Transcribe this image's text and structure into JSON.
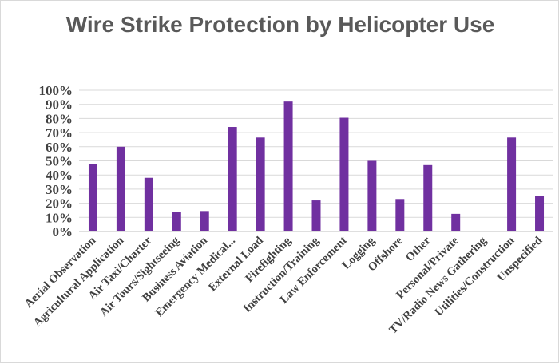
{
  "chart_data": {
    "type": "bar",
    "title": "Wire Strike Protection by Helicopter Use",
    "xlabel": "",
    "ylabel": "",
    "ylim": [
      0,
      1
    ],
    "yticks": [
      "0%",
      "10%",
      "20%",
      "30%",
      "40%",
      "50%",
      "60%",
      "70%",
      "80%",
      "90%",
      "100%"
    ],
    "grid": true,
    "legend": "none",
    "bar_color": "#7030a0",
    "categories": [
      "Aerial Observation",
      "Agricultural Application",
      "Air Taxi/Charter",
      "Air Tours/Sightseeing",
      "Business Aviation",
      "Emergency Medical...",
      "External Load",
      "Firefighting",
      "Instruction/Training",
      "Law Enforcement",
      "Logging",
      "Offshore",
      "Other",
      "Personal/Private",
      "TV/Radio News Gathering",
      "Utilities/Construction",
      "Unspecified"
    ],
    "values": [
      0.48,
      0.6,
      0.38,
      0.14,
      0.145,
      0.74,
      0.665,
      0.92,
      0.22,
      0.805,
      0.5,
      0.23,
      0.47,
      0.125,
      0.0,
      0.665,
      0.25
    ]
  }
}
